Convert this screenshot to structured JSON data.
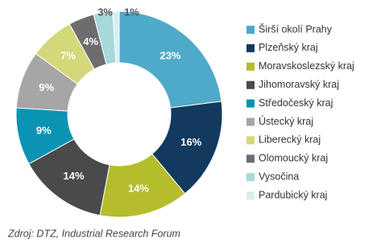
{
  "chart_data": {
    "type": "donut",
    "categories": [
      "Širší okolí Prahy",
      "Plzeňský kraj",
      "Moravskoslezský kraj",
      "Jihomoravský kraj",
      "Středočeský kraj",
      "Ústecký kraj",
      "Liberecký kraj",
      "Olomoucký kraj",
      "Vysočina",
      "Pardubický kraj"
    ],
    "values": [
      23,
      16,
      14,
      14,
      9,
      9,
      7,
      4,
      3,
      1
    ],
    "value_labels": [
      "23%",
      "16%",
      "14%",
      "14%",
      "9%",
      "9%",
      "7%",
      "4%",
      "3%",
      "1%"
    ],
    "colors": [
      "#4eaac8",
      "#123a5e",
      "#b5bd2c",
      "#4a4a4a",
      "#0b93b4",
      "#a6a6a6",
      "#d4d87a",
      "#6d6d6d",
      "#a7d8da",
      "#d9eef0"
    ],
    "source": "Zdroj: DTZ, Industrial Research Forum"
  }
}
